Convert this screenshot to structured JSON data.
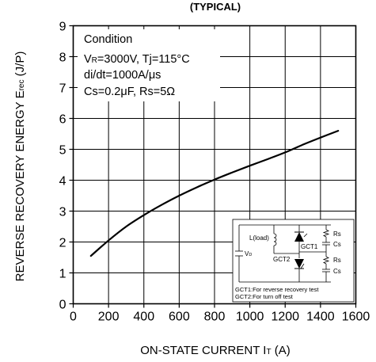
{
  "chart_data": {
    "type": "line",
    "title": "(TYPICAL)",
    "xlabel": "ON-STATE CURRENT IT (A)",
    "xlabel_main": "ON-STATE CURRENT I",
    "xlabel_sub": "T",
    "xlabel_unit": " (A)",
    "ylabel": "REVERSE RECOVERY ENERGY Erec (J/P)",
    "ylabel_main": "REVERSE RECOVERY ENERGY E",
    "ylabel_sub": "rec",
    "ylabel_unit": " (J/P)",
    "xlim": [
      0,
      1600
    ],
    "ylim": [
      0,
      9
    ],
    "xticks": [
      0,
      200,
      400,
      600,
      800,
      1000,
      1200,
      1400,
      1600
    ],
    "yticks": [
      0,
      1,
      2,
      3,
      4,
      5,
      6,
      7,
      8,
      9
    ],
    "grid": true,
    "series": [
      {
        "x": [
          100,
          200,
          300,
          400,
          500,
          600,
          700,
          800,
          900,
          1000,
          1100,
          1200,
          1300,
          1400,
          1500
        ],
        "values": [
          1.55,
          2.05,
          2.5,
          2.87,
          3.2,
          3.5,
          3.77,
          4.02,
          4.25,
          4.47,
          4.68,
          4.9,
          5.15,
          5.38,
          5.6
        ]
      }
    ],
    "condition": {
      "title": "Condition",
      "line1_a": "V",
      "line1_b": "R",
      "line1_c": "=3000V, Tj=115°C",
      "line2": "di/dt=1000A/μs",
      "line3": "Cs=0.2μF, Rs=5Ω"
    },
    "inset": {
      "labels": {
        "lload": "L(load)",
        "vd_main": "V",
        "vd_sub": "D",
        "gct1": "GCT1",
        "gct2": "GCT2",
        "rs_top": "Rs",
        "cs_top": "Cs",
        "rs_bot": "Rs",
        "cs_bot": "Cs"
      },
      "notes": [
        "GCT1:For reverse recovery test",
        "GCT2:For turn off test"
      ]
    }
  }
}
